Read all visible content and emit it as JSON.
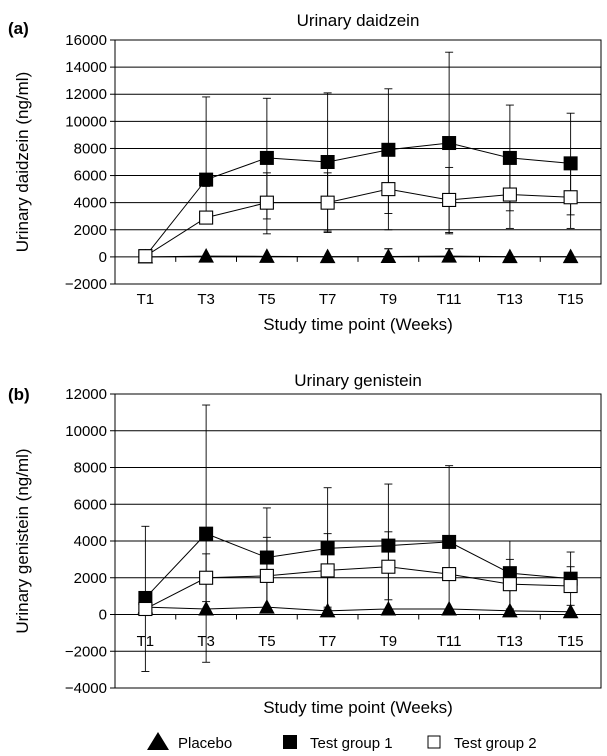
{
  "chart_data": [
    {
      "type": "line",
      "panel_label": "(a)",
      "title": "Urinary daidzein",
      "xlabel": "Study time point (Weeks)",
      "ylabel": "Urinary daidzein (ng/ml)",
      "ylim": [
        -2000,
        16000
      ],
      "yticks": [
        -2000,
        0,
        2000,
        4000,
        6000,
        8000,
        10000,
        12000,
        14000,
        16000
      ],
      "ytick_labels": [
        "−2000",
        "0",
        "2000",
        "4000",
        "6000",
        "8000",
        "10000",
        "12000",
        "14000",
        "16000"
      ],
      "grid": "horizontal",
      "categories": [
        "T1",
        "T3",
        "T5",
        "T7",
        "T9",
        "T11",
        "T13",
        "T15"
      ],
      "series": [
        {
          "name": "Placebo",
          "marker": "triangle",
          "values": [
            0,
            60,
            40,
            20,
            30,
            60,
            20,
            20
          ],
          "error_upper": [
            0,
            0,
            0,
            0,
            600,
            600,
            0,
            0
          ],
          "error_lower": [
            0,
            0,
            0,
            0,
            600,
            600,
            0,
            0
          ]
        },
        {
          "name": "Test group 1",
          "marker": "filled-square",
          "values": [
            50,
            5700,
            7300,
            7000,
            7900,
            8400,
            7300,
            6900
          ],
          "error_upper": [
            0,
            11800,
            11700,
            12100,
            12400,
            15100,
            11200,
            10600
          ],
          "error_lower": [
            0,
            0,
            2800,
            1800,
            3200,
            1800,
            3400,
            3100
          ]
        },
        {
          "name": "Test group 2",
          "marker": "open-square",
          "values": [
            50,
            2900,
            4000,
            4000,
            5000,
            4200,
            4600,
            4400
          ],
          "error_upper": [
            0,
            5200,
            6200,
            6200,
            8100,
            6600,
            6900,
            6700
          ],
          "error_lower": [
            0,
            0,
            1700,
            1900,
            2000,
            1700,
            2100,
            2100
          ]
        }
      ]
    },
    {
      "type": "line",
      "panel_label": "(b)",
      "title": "Urinary genistein",
      "xlabel": "Study time point (Weeks)",
      "ylabel": "Urinary genistein (ng/ml)",
      "ylim": [
        -4000,
        12000
      ],
      "yticks": [
        -4000,
        -2000,
        0,
        2000,
        4000,
        6000,
        8000,
        10000,
        12000
      ],
      "ytick_labels": [
        "−4000",
        "−2000",
        "0",
        "2000",
        "4000",
        "6000",
        "8000",
        "10000",
        "12000"
      ],
      "grid": "horizontal",
      "categories": [
        "T1",
        "T3",
        "T5",
        "T7",
        "T9",
        "T11",
        "T13",
        "T15"
      ],
      "series": [
        {
          "name": "Placebo",
          "marker": "triangle",
          "values": [
            400,
            300,
            400,
            200,
            300,
            300,
            200,
            150
          ],
          "error_upper": [
            0,
            0,
            0,
            0,
            0,
            0,
            0,
            0
          ],
          "error_lower": [
            0,
            0,
            0,
            0,
            0,
            0,
            0,
            0
          ]
        },
        {
          "name": "Test group 1",
          "marker": "filled-square",
          "values": [
            900,
            4400,
            3100,
            3600,
            3750,
            3950,
            2250,
            1950
          ],
          "error_upper": [
            4800,
            11400,
            5800,
            6900,
            7100,
            8100,
            4000,
            3400
          ],
          "error_lower": [
            -3100,
            -2600,
            300,
            300,
            300,
            0,
            300,
            0
          ]
        },
        {
          "name": "Test group 2",
          "marker": "open-square",
          "values": [
            300,
            2000,
            2100,
            2400,
            2600,
            2200,
            1650,
            1550
          ],
          "error_upper": [
            300,
            3300,
            4200,
            4400,
            4500,
            4100,
            3000,
            2600
          ],
          "error_lower": [
            300,
            700,
            300,
            400,
            800,
            300,
            300,
            500
          ]
        }
      ]
    }
  ],
  "legend": {
    "placement": "bottom",
    "items": [
      {
        "label": "Placebo",
        "marker": "triangle"
      },
      {
        "label": "Test group 1",
        "marker": "filled-square"
      },
      {
        "label": "Test group 2",
        "marker": "open-square"
      }
    ]
  }
}
